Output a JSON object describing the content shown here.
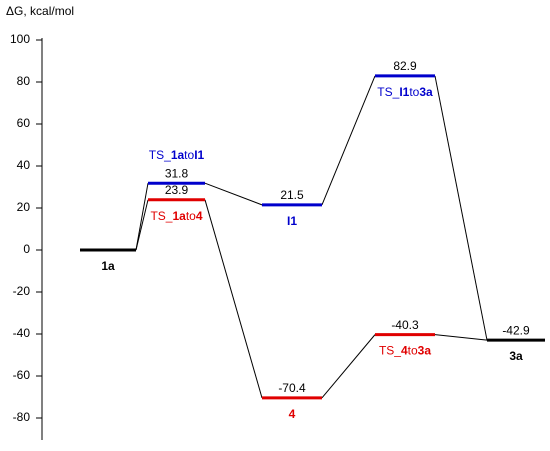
{
  "chart_data": {
    "type": "energy-profile",
    "axis_label": "ΔG, kcal/mol",
    "ylim": [
      -90,
      100
    ],
    "yticks": [
      100,
      80,
      60,
      40,
      20,
      0,
      -20,
      -40,
      -60,
      -80
    ],
    "levels": [
      {
        "name_parts": [
          "1a"
        ],
        "value": 0,
        "color": "#000000"
      },
      {
        "name_parts": [
          "TS_",
          "1a",
          "to",
          "I1"
        ],
        "value": 31.8,
        "color": "#0000cc"
      },
      {
        "name_parts": [
          "TS_",
          "1a",
          "to",
          "4"
        ],
        "value": 23.9,
        "color": "#e00000"
      },
      {
        "name_parts": [
          "I1"
        ],
        "value": 21.5,
        "color": "#0000cc"
      },
      {
        "name_parts": [
          "4"
        ],
        "value": -70.4,
        "color": "#e00000"
      },
      {
        "name_parts": [
          "TS_",
          "I1",
          "to",
          "3a"
        ],
        "value": 82.9,
        "color": "#0000cc"
      },
      {
        "name_parts": [
          "TS_",
          "4",
          "to",
          "3a"
        ],
        "value": -40.3,
        "color": "#e00000"
      },
      {
        "name_parts": [
          "3a"
        ],
        "value": -42.9,
        "color": "#000000"
      }
    ],
    "links": [
      [
        0,
        1
      ],
      [
        0,
        2
      ],
      [
        1,
        3
      ],
      [
        2,
        4
      ],
      [
        3,
        5
      ],
      [
        4,
        6
      ],
      [
        5,
        7
      ],
      [
        6,
        7
      ]
    ]
  }
}
